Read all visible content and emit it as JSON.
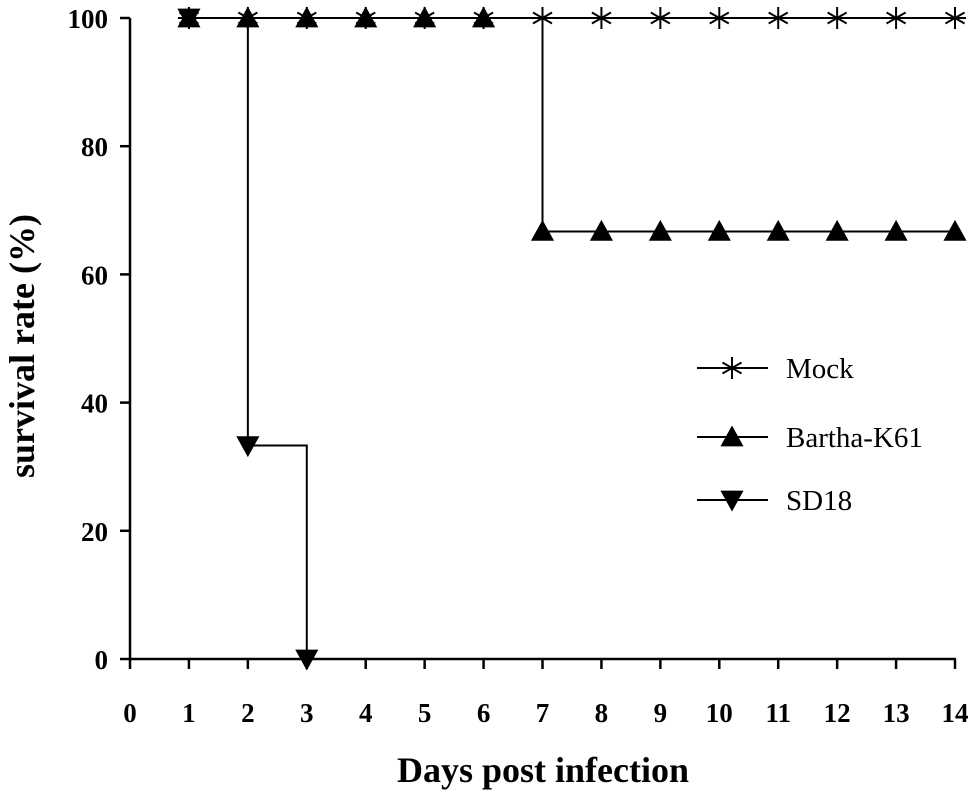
{
  "chart_data": {
    "type": "line",
    "title": "",
    "xlabel": "Days post infection",
    "ylabel": "survival rate (%)",
    "xlim": [
      0,
      14
    ],
    "ylim": [
      0,
      100
    ],
    "x_ticks": [
      "0",
      "1",
      "2",
      "3",
      "4",
      "5",
      "6",
      "7",
      "8",
      "9",
      "10",
      "11",
      "12",
      "13",
      "14"
    ],
    "y_ticks": [
      "0",
      "20",
      "40",
      "60",
      "80",
      "100"
    ],
    "grid": false,
    "legend_position": "right",
    "step": true,
    "series": [
      {
        "name": "Mock",
        "marker": "asterisk",
        "color": "#000000",
        "x": [
          1,
          2,
          3,
          4,
          5,
          6,
          7,
          8,
          9,
          10,
          11,
          12,
          13,
          14
        ],
        "y": [
          100,
          100,
          100,
          100,
          100,
          100,
          100,
          100,
          100,
          100,
          100,
          100,
          100,
          100
        ]
      },
      {
        "name": "Bartha-K61",
        "marker": "triangle-up",
        "color": "#000000",
        "x": [
          1,
          2,
          3,
          4,
          5,
          6,
          7,
          8,
          9,
          10,
          11,
          12,
          13,
          14
        ],
        "y": [
          100,
          100,
          100,
          100,
          100,
          100,
          66.7,
          66.7,
          66.7,
          66.7,
          66.7,
          66.7,
          66.7,
          66.7
        ]
      },
      {
        "name": "SD18",
        "marker": "triangle-down",
        "color": "#000000",
        "x": [
          1,
          2,
          3
        ],
        "y": [
          100,
          33.3,
          0
        ]
      }
    ]
  }
}
